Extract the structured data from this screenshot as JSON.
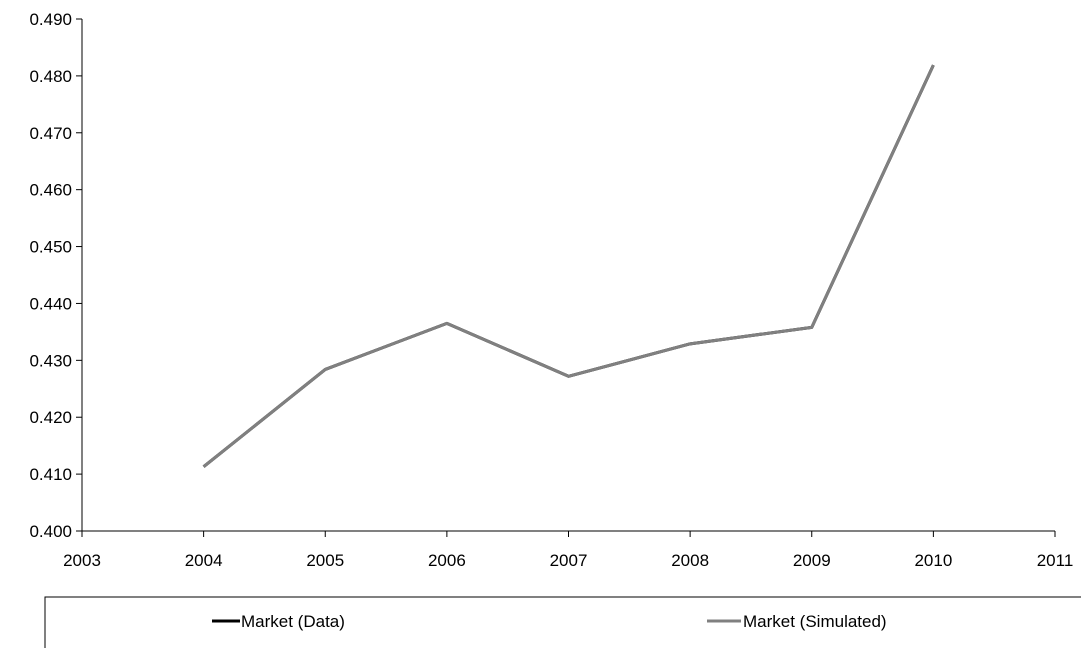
{
  "chart_data": {
    "type": "line",
    "title": "",
    "xlabel": "",
    "ylabel": "",
    "xlim": [
      2003,
      2011
    ],
    "ylim": [
      0.4,
      0.49
    ],
    "x_ticks": [
      "2003",
      "2004",
      "2005",
      "2006",
      "2007",
      "2008",
      "2009",
      "2010",
      "2011"
    ],
    "y_ticks": [
      "0.400",
      "0.410",
      "0.420",
      "0.430",
      "0.440",
      "0.450",
      "0.460",
      "0.470",
      "0.480",
      "0.490"
    ],
    "grid": false,
    "legend_placement": "bottom",
    "x": [
      2004,
      2005,
      2006,
      2007,
      2008,
      2009,
      2010
    ],
    "series": [
      {
        "name": "Market (Data)",
        "color": "#000000",
        "values": [
          0.4113,
          0.4284,
          0.4365,
          0.4272,
          0.4329,
          0.4358,
          0.4819
        ]
      },
      {
        "name": "Market (Simulated)",
        "color": "#808080",
        "values": [
          0.4113,
          0.4284,
          0.4365,
          0.4272,
          0.4329,
          0.4358,
          0.4819
        ]
      }
    ]
  }
}
